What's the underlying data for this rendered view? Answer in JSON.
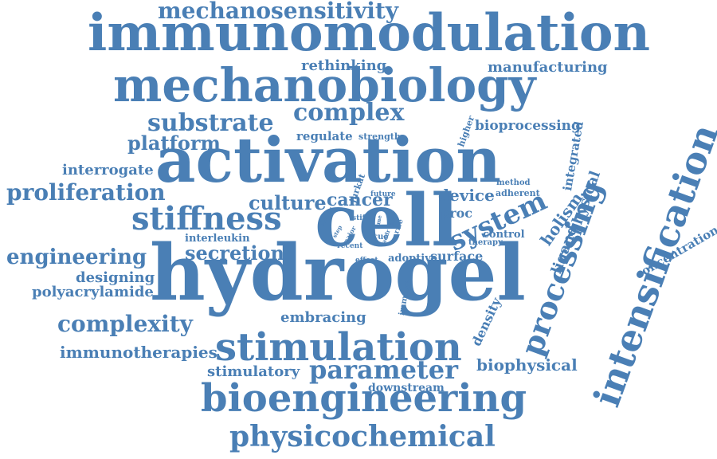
{
  "color": "#4a7fb5",
  "words": [
    {
      "text": "activation"
    },
    {
      "text": "hydrogel"
    },
    {
      "text": "cell"
    },
    {
      "text": "immunomodulation"
    },
    {
      "text": "mechanobiology"
    },
    {
      "text": "bioengineering"
    },
    {
      "text": "stimulation"
    },
    {
      "text": "intensification"
    },
    {
      "text": "processing"
    },
    {
      "text": "stiffness"
    },
    {
      "text": "physicochemical"
    },
    {
      "text": "mechanosensitivity"
    },
    {
      "text": "system"
    },
    {
      "text": "parameter"
    },
    {
      "text": "substrate"
    },
    {
      "text": "complex"
    },
    {
      "text": "proliferation"
    },
    {
      "text": "complexity"
    },
    {
      "text": "engineering"
    },
    {
      "text": "platform"
    },
    {
      "text": "culture"
    },
    {
      "text": "cancer"
    },
    {
      "text": "secretion"
    },
    {
      "text": "biophysical"
    },
    {
      "text": "holism"
    },
    {
      "text": "immunotherapies"
    },
    {
      "text": "stimulatory"
    },
    {
      "text": "embracing"
    },
    {
      "text": "polyacrylamide"
    },
    {
      "text": "interrogate"
    },
    {
      "text": "designing"
    },
    {
      "text": "rethinking"
    },
    {
      "text": "manufacturing"
    },
    {
      "text": "bioprocessing"
    },
    {
      "text": "device"
    },
    {
      "text": "ligand"
    },
    {
      "text": "physical"
    },
    {
      "text": "integrated"
    },
    {
      "text": "density"
    },
    {
      "text": "surface"
    },
    {
      "text": "concentration"
    },
    {
      "text": "regulate"
    },
    {
      "text": "downstream"
    },
    {
      "text": "proc"
    },
    {
      "text": "adoptive"
    },
    {
      "text": "interleukin"
    },
    {
      "text": "control"
    },
    {
      "text": "adherent"
    },
    {
      "text": "jurkat"
    },
    {
      "text": "higher"
    },
    {
      "text": "strength"
    },
    {
      "text": "method"
    },
    {
      "text": "immune"
    },
    {
      "text": "therapy"
    },
    {
      "text": "future"
    },
    {
      "text": "cue"
    },
    {
      "text": "rise"
    },
    {
      "text": "stiff"
    },
    {
      "text": "recent"
    },
    {
      "text": "effect"
    },
    {
      "text": "lower"
    },
    {
      "text": "major"
    },
    {
      "text": "step"
    },
    {
      "text": "time"
    },
    {
      "text": "addr"
    },
    {
      "text": "soft"
    }
  ]
}
